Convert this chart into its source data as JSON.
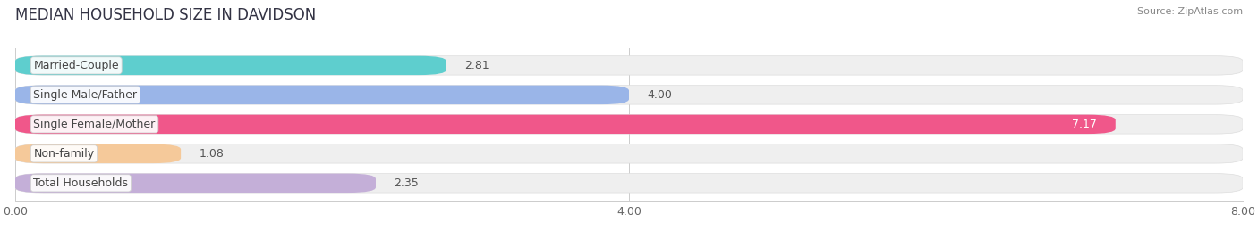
{
  "title": "MEDIAN HOUSEHOLD SIZE IN DAVIDSON",
  "source": "Source: ZipAtlas.com",
  "categories": [
    "Married-Couple",
    "Single Male/Father",
    "Single Female/Mother",
    "Non-family",
    "Total Households"
  ],
  "values": [
    2.81,
    4.0,
    7.17,
    1.08,
    2.35
  ],
  "bar_colors": [
    "#5ecece",
    "#9ab5e8",
    "#f0578a",
    "#f5c99a",
    "#c4afd8"
  ],
  "xlim": [
    0,
    8.0
  ],
  "xticks": [
    0.0,
    4.0,
    8.0
  ],
  "xtick_labels": [
    "0.00",
    "4.00",
    "8.00"
  ],
  "background_color": "#ffffff",
  "bar_bg_color": "#efefef",
  "title_fontsize": 12,
  "label_fontsize": 9,
  "value_fontsize": 9
}
